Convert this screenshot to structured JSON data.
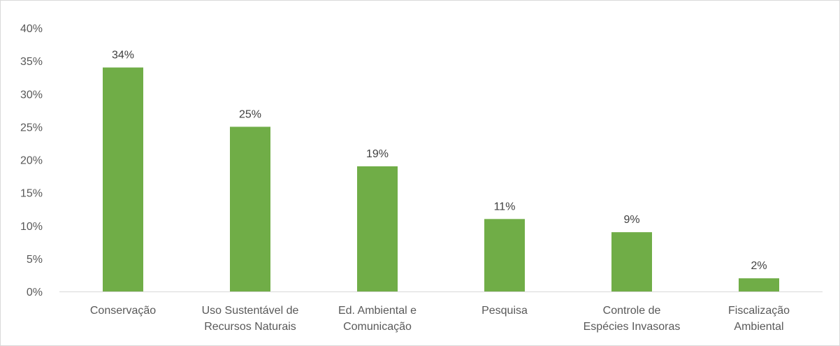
{
  "chart_data": {
    "type": "bar",
    "categories": [
      [
        "Conservação"
      ],
      [
        "Uso Sustentável de",
        "Recursos Naturais"
      ],
      [
        "Ed. Ambiental e",
        "Comunicação"
      ],
      [
        "Pesquisa"
      ],
      [
        "Controle de",
        "Espécies Invasoras"
      ],
      [
        "Fiscalização",
        "Ambiental"
      ]
    ],
    "values": [
      34,
      25,
      19,
      11,
      9,
      2
    ],
    "value_labels": [
      "34%",
      "25%",
      "19%",
      "11%",
      "9%",
      "2%"
    ],
    "y_ticks": [
      "0%",
      "5%",
      "10%",
      "15%",
      "20%",
      "25%",
      "30%",
      "35%",
      "40%"
    ],
    "ylim": [
      0,
      40
    ],
    "grid": false,
    "legend": "none",
    "title": "",
    "xlabel": "",
    "ylabel": "",
    "colors": {
      "bar": "#70AD47",
      "axis": "#d9d9d9",
      "text": "#595959"
    }
  }
}
